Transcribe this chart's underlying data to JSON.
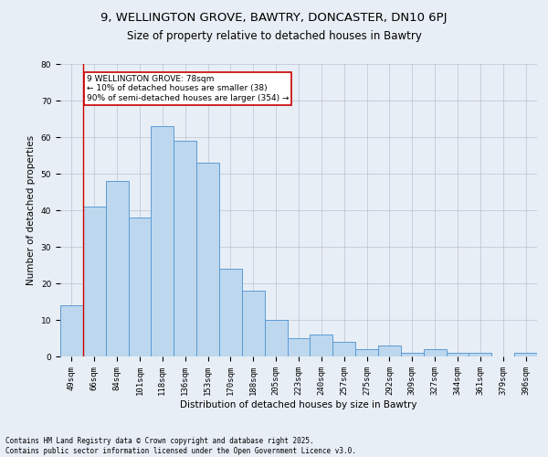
{
  "title1": "9, WELLINGTON GROVE, BAWTRY, DONCASTER, DN10 6PJ",
  "title2": "Size of property relative to detached houses in Bawtry",
  "xlabel": "Distribution of detached houses by size in Bawtry",
  "ylabel": "Number of detached properties",
  "categories": [
    "49sqm",
    "66sqm",
    "84sqm",
    "101sqm",
    "118sqm",
    "136sqm",
    "153sqm",
    "170sqm",
    "188sqm",
    "205sqm",
    "223sqm",
    "240sqm",
    "257sqm",
    "275sqm",
    "292sqm",
    "309sqm",
    "327sqm",
    "344sqm",
    "361sqm",
    "379sqm",
    "396sqm"
  ],
  "values": [
    14,
    41,
    48,
    38,
    63,
    59,
    53,
    24,
    18,
    10,
    5,
    6,
    4,
    2,
    3,
    1,
    2,
    1,
    1,
    0,
    1
  ],
  "bar_color": "#BDD7EE",
  "bar_edge_color": "#5B9BD5",
  "bg_color": "#E8EEF5",
  "annotation_text": "9 WELLINGTON GROVE: 78sqm\n← 10% of detached houses are smaller (38)\n90% of semi-detached houses are larger (354) →",
  "annotation_box_color": "#ffffff",
  "annotation_box_edge": "#cc0000",
  "vline_color": "#cc0000",
  "vline_pos": 0.5,
  "ylim": [
    0,
    80
  ],
  "yticks": [
    0,
    10,
    20,
    30,
    40,
    50,
    60,
    70,
    80
  ],
  "footer": "Contains HM Land Registry data © Crown copyright and database right 2025.\nContains public sector information licensed under the Open Government Licence v3.0.",
  "title_fontsize": 9.5,
  "subtitle_fontsize": 8.5,
  "tick_fontsize": 6.5,
  "ylabel_fontsize": 7.5,
  "xlabel_fontsize": 7.5,
  "annot_fontsize": 6.5,
  "footer_fontsize": 5.5
}
